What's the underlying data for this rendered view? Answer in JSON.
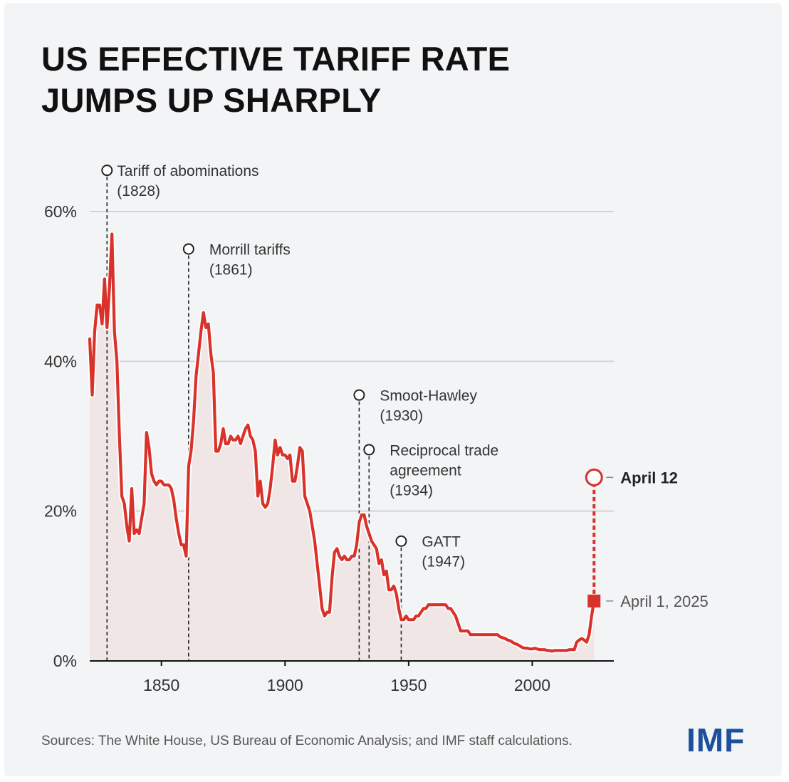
{
  "chart_data": {
    "type": "line",
    "title_lines": [
      "US EFFECTIVE TARIFF RATE",
      "JUMPS UP SHARPLY"
    ],
    "source": "Sources: The White House, US Bureau of Economic Analysis; and IMF staff calculations.",
    "logo": "IMF",
    "xlim": [
      1821,
      2033
    ],
    "ylim": [
      0,
      60
    ],
    "x_ticks": [
      {
        "value": 1850,
        "label": "1850"
      },
      {
        "value": 1900,
        "label": "1900"
      },
      {
        "value": 1950,
        "label": "1950"
      },
      {
        "value": 2000,
        "label": "2000"
      }
    ],
    "y_ticks": [
      {
        "value": 0,
        "label": "0%"
      },
      {
        "value": 20,
        "label": "20%"
      },
      {
        "value": 40,
        "label": "40%"
      },
      {
        "value": 60,
        "label": "60%"
      }
    ],
    "grid": true,
    "line_color": "#d9322b",
    "area_color": "#f1e6e6",
    "series": [
      {
        "points": [
          [
            1821,
            43
          ],
          [
            1822,
            35.5
          ],
          [
            1823,
            44
          ],
          [
            1824,
            47.5
          ],
          [
            1825,
            47.5
          ],
          [
            1826,
            45
          ],
          [
            1827,
            51
          ],
          [
            1828,
            44.5
          ],
          [
            1829,
            50
          ],
          [
            1830,
            57
          ],
          [
            1831,
            44
          ],
          [
            1832,
            40
          ],
          [
            1833,
            30
          ],
          [
            1834,
            22
          ],
          [
            1835,
            21
          ],
          [
            1836,
            18
          ],
          [
            1837,
            16
          ],
          [
            1838,
            23
          ],
          [
            1839,
            17
          ],
          [
            1840,
            17.5
          ],
          [
            1841,
            17
          ],
          [
            1842,
            19
          ],
          [
            1843,
            21
          ],
          [
            1844,
            30.5
          ],
          [
            1845,
            28.5
          ],
          [
            1846,
            25
          ],
          [
            1847,
            24
          ],
          [
            1848,
            23.5
          ],
          [
            1849,
            24
          ],
          [
            1850,
            24
          ],
          [
            1851,
            23.5
          ],
          [
            1852,
            23.5
          ],
          [
            1853,
            23.5
          ],
          [
            1854,
            23
          ],
          [
            1855,
            21.5
          ],
          [
            1856,
            19
          ],
          [
            1857,
            17
          ],
          [
            1858,
            15.5
          ],
          [
            1859,
            15.5
          ],
          [
            1860,
            14
          ],
          [
            1861,
            26
          ],
          [
            1862,
            28
          ],
          [
            1863,
            32
          ],
          [
            1864,
            38
          ],
          [
            1865,
            41
          ],
          [
            1866,
            44
          ],
          [
            1867,
            46.5
          ],
          [
            1868,
            44.5
          ],
          [
            1869,
            45
          ],
          [
            1870,
            41
          ],
          [
            1871,
            38.5
          ],
          [
            1872,
            28
          ],
          [
            1873,
            28
          ],
          [
            1874,
            29
          ],
          [
            1875,
            31
          ],
          [
            1876,
            29
          ],
          [
            1877,
            29
          ],
          [
            1878,
            30
          ],
          [
            1879,
            29.5
          ],
          [
            1880,
            29.5
          ],
          [
            1881,
            30
          ],
          [
            1882,
            29
          ],
          [
            1883,
            30
          ],
          [
            1884,
            31
          ],
          [
            1885,
            31.5
          ],
          [
            1886,
            30
          ],
          [
            1887,
            29.5
          ],
          [
            1888,
            28
          ],
          [
            1889,
            22
          ],
          [
            1890,
            24
          ],
          [
            1891,
            21
          ],
          [
            1892,
            20.5
          ],
          [
            1893,
            21
          ],
          [
            1894,
            23
          ],
          [
            1895,
            26
          ],
          [
            1896,
            29.5
          ],
          [
            1897,
            27.5
          ],
          [
            1898,
            28.5
          ],
          [
            1899,
            27.5
          ],
          [
            1900,
            27.5
          ],
          [
            1901,
            27
          ],
          [
            1902,
            27.5
          ],
          [
            1903,
            24
          ],
          [
            1904,
            24
          ],
          [
            1905,
            26
          ],
          [
            1906,
            28.5
          ],
          [
            1907,
            28
          ],
          [
            1908,
            22
          ],
          [
            1909,
            21
          ],
          [
            1910,
            20
          ],
          [
            1911,
            18
          ],
          [
            1912,
            16
          ],
          [
            1913,
            13
          ],
          [
            1914,
            10
          ],
          [
            1915,
            7
          ],
          [
            1916,
            6
          ],
          [
            1917,
            6.5
          ],
          [
            1918,
            6.5
          ],
          [
            1919,
            11
          ],
          [
            1920,
            14.5
          ],
          [
            1921,
            15
          ],
          [
            1922,
            14
          ],
          [
            1923,
            13.5
          ],
          [
            1924,
            14
          ],
          [
            1925,
            13.5
          ],
          [
            1926,
            13.5
          ],
          [
            1927,
            14
          ],
          [
            1928,
            14
          ],
          [
            1929,
            15.5
          ],
          [
            1930,
            18.5
          ],
          [
            1931,
            19.5
          ],
          [
            1932,
            19.5
          ],
          [
            1933,
            18
          ],
          [
            1934,
            17
          ],
          [
            1935,
            16
          ],
          [
            1936,
            15.5
          ],
          [
            1937,
            15
          ],
          [
            1938,
            13
          ],
          [
            1939,
            13.5
          ],
          [
            1940,
            11.5
          ],
          [
            1941,
            12
          ],
          [
            1942,
            9.5
          ],
          [
            1943,
            9.5
          ],
          [
            1944,
            10
          ],
          [
            1945,
            9
          ],
          [
            1946,
            7
          ],
          [
            1947,
            5.5
          ],
          [
            1948,
            5.5
          ],
          [
            1949,
            6
          ],
          [
            1950,
            5.5
          ],
          [
            1951,
            5.5
          ],
          [
            1952,
            5.5
          ],
          [
            1953,
            6
          ],
          [
            1954,
            6
          ],
          [
            1955,
            6.5
          ],
          [
            1956,
            7
          ],
          [
            1957,
            7
          ],
          [
            1958,
            7.5
          ],
          [
            1959,
            7.5
          ],
          [
            1960,
            7.5
          ],
          [
            1961,
            7.5
          ],
          [
            1962,
            7.5
          ],
          [
            1963,
            7.5
          ],
          [
            1964,
            7.5
          ],
          [
            1965,
            7.5
          ],
          [
            1966,
            7
          ],
          [
            1967,
            7
          ],
          [
            1968,
            6.5
          ],
          [
            1969,
            6
          ],
          [
            1970,
            5
          ],
          [
            1971,
            4
          ],
          [
            1972,
            4
          ],
          [
            1973,
            4
          ],
          [
            1974,
            4
          ],
          [
            1975,
            3.5
          ],
          [
            1976,
            3.5
          ],
          [
            1977,
            3.5
          ],
          [
            1978,
            3.5
          ],
          [
            1979,
            3.5
          ],
          [
            1980,
            3.5
          ],
          [
            1981,
            3.5
          ],
          [
            1982,
            3.5
          ],
          [
            1983,
            3.5
          ],
          [
            1984,
            3.5
          ],
          [
            1985,
            3.5
          ],
          [
            1986,
            3.5
          ],
          [
            1987,
            3.2
          ],
          [
            1988,
            3.1
          ],
          [
            1989,
            3
          ],
          [
            1990,
            2.8
          ],
          [
            1991,
            2.7
          ],
          [
            1992,
            2.5
          ],
          [
            1993,
            2.3
          ],
          [
            1994,
            2.2
          ],
          [
            1995,
            2
          ],
          [
            1996,
            1.8
          ],
          [
            1997,
            1.7
          ],
          [
            1998,
            1.7
          ],
          [
            1999,
            1.6
          ],
          [
            2000,
            1.6
          ],
          [
            2001,
            1.7
          ],
          [
            2002,
            1.6
          ],
          [
            2003,
            1.5
          ],
          [
            2004,
            1.5
          ],
          [
            2005,
            1.5
          ],
          [
            2006,
            1.4
          ],
          [
            2007,
            1.4
          ],
          [
            2008,
            1.3
          ],
          [
            2009,
            1.4
          ],
          [
            2010,
            1.4
          ],
          [
            2011,
            1.4
          ],
          [
            2012,
            1.4
          ],
          [
            2013,
            1.4
          ],
          [
            2014,
            1.4
          ],
          [
            2015,
            1.5
          ],
          [
            2016,
            1.5
          ],
          [
            2017,
            1.5
          ],
          [
            2018,
            2.5
          ],
          [
            2019,
            2.8
          ],
          [
            2020,
            3
          ],
          [
            2021,
            2.8
          ],
          [
            2022,
            2.5
          ],
          [
            2023,
            3.5
          ],
          [
            2024,
            6
          ],
          [
            2025,
            8
          ]
        ]
      }
    ],
    "projection": {
      "x": 2025,
      "from_value": 8,
      "to_value": 24.5,
      "from_label": "April 1, 2025",
      "to_label": "April 12"
    },
    "annotations": [
      {
        "year": 1828,
        "marker_value": 65.5,
        "lines": [
          "Tariff of abominations",
          "(1828)"
        ]
      },
      {
        "year": 1861,
        "marker_value": 55,
        "lines": [
          "Morrill tariffs",
          "(1861)"
        ]
      },
      {
        "year": 1930,
        "marker_value": 35.5,
        "lines": [
          "Smoot-Hawley",
          "(1930)"
        ]
      },
      {
        "year": 1934,
        "marker_value": 28.2,
        "lines": [
          "Reciprocal trade",
          "agreement",
          "(1934)"
        ]
      },
      {
        "year": 1947,
        "marker_value": 16,
        "lines": [
          "GATT",
          "(1947)"
        ]
      }
    ]
  }
}
